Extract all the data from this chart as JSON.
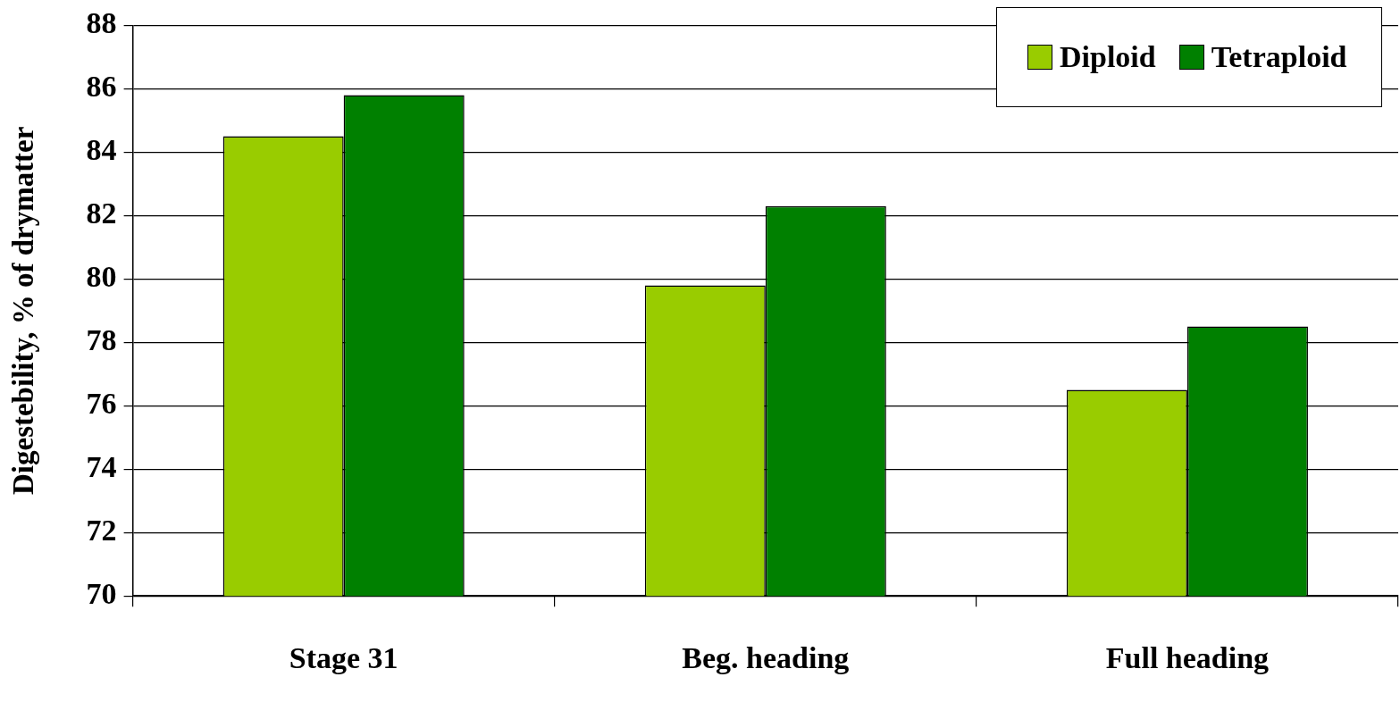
{
  "chart_data": {
    "type": "bar",
    "ylabel": "Digestebility, % of drymatter",
    "categories": [
      "Stage 31",
      "Beg. heading",
      "Full heading"
    ],
    "series": [
      {
        "name": "Diploid",
        "color": "#99cc00",
        "values": [
          84.5,
          79.8,
          76.5
        ]
      },
      {
        "name": "Tetraploid",
        "color": "#008000",
        "values": [
          85.8,
          82.3,
          78.5
        ]
      }
    ],
    "ylim": [
      70,
      88
    ],
    "yticks": [
      70,
      72,
      74,
      76,
      78,
      80,
      82,
      84,
      86,
      88
    ],
    "grid": "y",
    "legend": "top right"
  }
}
